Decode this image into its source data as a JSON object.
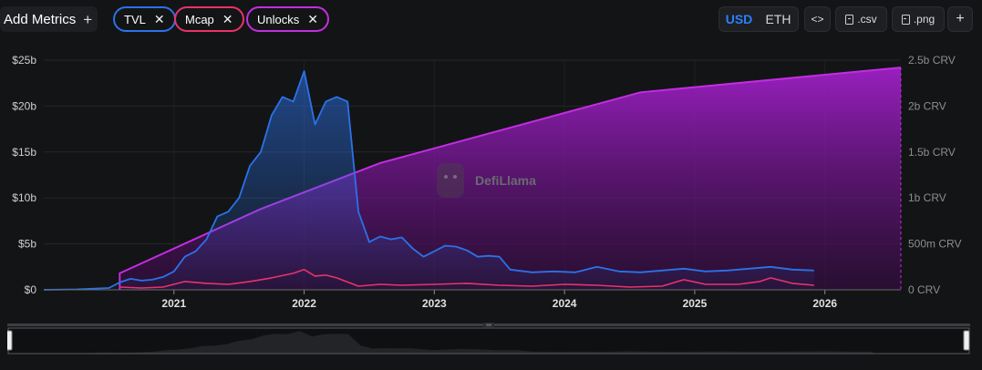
{
  "toolbar": {
    "add_metrics_label": "Add Metrics",
    "chips": [
      {
        "label": "TVL",
        "color": "#2b72e8"
      },
      {
        "label": "Mcap",
        "color": "#e8336a"
      },
      {
        "label": "Unlocks",
        "color": "#c22ee0"
      }
    ],
    "currency": {
      "usd": "USD",
      "eth": "ETH",
      "selected": "USD"
    },
    "embed_label": "<>",
    "csv_label": ".csv",
    "png_label": ".png",
    "add_label": "+"
  },
  "watermark": "DefiLlama",
  "chart_data": {
    "type": "area",
    "x_ticks": [
      "2021",
      "2022",
      "2023",
      "2024",
      "2025",
      "2026"
    ],
    "y_left": {
      "ticks": [
        "$0",
        "$5b",
        "$10b",
        "$15b",
        "$20b",
        "$25b"
      ],
      "range": [
        0,
        25
      ],
      "unit": "billion USD"
    },
    "y_right": {
      "ticks": [
        "0 CRV",
        "500m CRV",
        "1b CRV",
        "1.5b CRV",
        "2b CRV",
        "2.5b CRV"
      ],
      "range": [
        0,
        2.5
      ],
      "unit": "billion CRV"
    },
    "x_range": [
      "2020-01",
      "2026-08"
    ],
    "grid": true,
    "series": [
      {
        "name": "TVL",
        "axis": "left",
        "color": "#2b72e8",
        "points": [
          [
            "2020-01",
            0
          ],
          [
            "2020-04",
            0.05
          ],
          [
            "2020-07",
            0.2
          ],
          [
            "2020-08",
            0.8
          ],
          [
            "2020-09",
            1.2
          ],
          [
            "2020-10",
            1.0
          ],
          [
            "2020-11",
            1.1
          ],
          [
            "2020-12",
            1.4
          ],
          [
            "2021-01",
            2.0
          ],
          [
            "2021-02",
            3.6
          ],
          [
            "2021-03",
            4.2
          ],
          [
            "2021-04",
            5.5
          ],
          [
            "2021-05",
            8.0
          ],
          [
            "2021-06",
            8.5
          ],
          [
            "2021-07",
            10.0
          ],
          [
            "2021-08",
            13.5
          ],
          [
            "2021-09",
            15.0
          ],
          [
            "2021-10",
            19.0
          ],
          [
            "2021-11",
            21.0
          ],
          [
            "2021-12",
            20.5
          ],
          [
            "2022-01",
            23.8
          ],
          [
            "2022-02",
            18.0
          ],
          [
            "2022-03",
            20.5
          ],
          [
            "2022-04",
            21.0
          ],
          [
            "2022-05",
            20.5
          ],
          [
            "2022-06",
            8.5
          ],
          [
            "2022-07",
            5.2
          ],
          [
            "2022-08",
            5.8
          ],
          [
            "2022-09",
            5.5
          ],
          [
            "2022-10",
            5.7
          ],
          [
            "2022-11",
            4.5
          ],
          [
            "2022-12",
            3.6
          ],
          [
            "2023-01",
            4.2
          ],
          [
            "2023-02",
            4.8
          ],
          [
            "2023-03",
            4.7
          ],
          [
            "2023-04",
            4.3
          ],
          [
            "2023-05",
            3.6
          ],
          [
            "2023-06",
            3.7
          ],
          [
            "2023-07",
            3.6
          ],
          [
            "2023-08",
            2.2
          ],
          [
            "2023-10",
            1.9
          ],
          [
            "2023-12",
            2.0
          ],
          [
            "2024-02",
            1.9
          ],
          [
            "2024-04",
            2.5
          ],
          [
            "2024-06",
            2.0
          ],
          [
            "2024-08",
            1.9
          ],
          [
            "2024-10",
            2.1
          ],
          [
            "2024-12",
            2.3
          ],
          [
            "2025-02",
            2.0
          ],
          [
            "2025-04",
            2.1
          ],
          [
            "2025-06",
            2.3
          ],
          [
            "2025-08",
            2.5
          ],
          [
            "2025-10",
            2.2
          ],
          [
            "2025-12",
            2.1
          ]
        ]
      },
      {
        "name": "Mcap",
        "axis": "left",
        "color": "#e8336a",
        "points": [
          [
            "2020-08",
            0.3
          ],
          [
            "2020-10",
            0.2
          ],
          [
            "2020-12",
            0.3
          ],
          [
            "2021-02",
            0.9
          ],
          [
            "2021-04",
            0.7
          ],
          [
            "2021-06",
            0.6
          ],
          [
            "2021-08",
            0.9
          ],
          [
            "2021-10",
            1.3
          ],
          [
            "2021-12",
            1.8
          ],
          [
            "2022-01",
            2.2
          ],
          [
            "2022-02",
            1.5
          ],
          [
            "2022-03",
            1.6
          ],
          [
            "2022-04",
            1.3
          ],
          [
            "2022-06",
            0.4
          ],
          [
            "2022-08",
            0.6
          ],
          [
            "2022-10",
            0.5
          ],
          [
            "2023-01",
            0.6
          ],
          [
            "2023-04",
            0.7
          ],
          [
            "2023-07",
            0.5
          ],
          [
            "2023-10",
            0.4
          ],
          [
            "2024-01",
            0.6
          ],
          [
            "2024-04",
            0.5
          ],
          [
            "2024-07",
            0.3
          ],
          [
            "2024-10",
            0.4
          ],
          [
            "2024-12",
            1.1
          ],
          [
            "2025-02",
            0.6
          ],
          [
            "2025-05",
            0.6
          ],
          [
            "2025-07",
            0.9
          ],
          [
            "2025-08",
            1.3
          ],
          [
            "2025-10",
            0.7
          ],
          [
            "2025-12",
            0.5
          ]
        ]
      },
      {
        "name": "Unlocks",
        "axis": "right",
        "color": "#c22ee0",
        "points": [
          [
            "2020-08",
            0.0
          ],
          [
            "2020-08",
            0.18
          ],
          [
            "2021-09",
            0.88
          ],
          [
            "2022-08",
            1.38
          ],
          [
            "2024-08",
            2.15
          ],
          [
            "2026-08",
            2.42
          ]
        ]
      }
    ]
  }
}
